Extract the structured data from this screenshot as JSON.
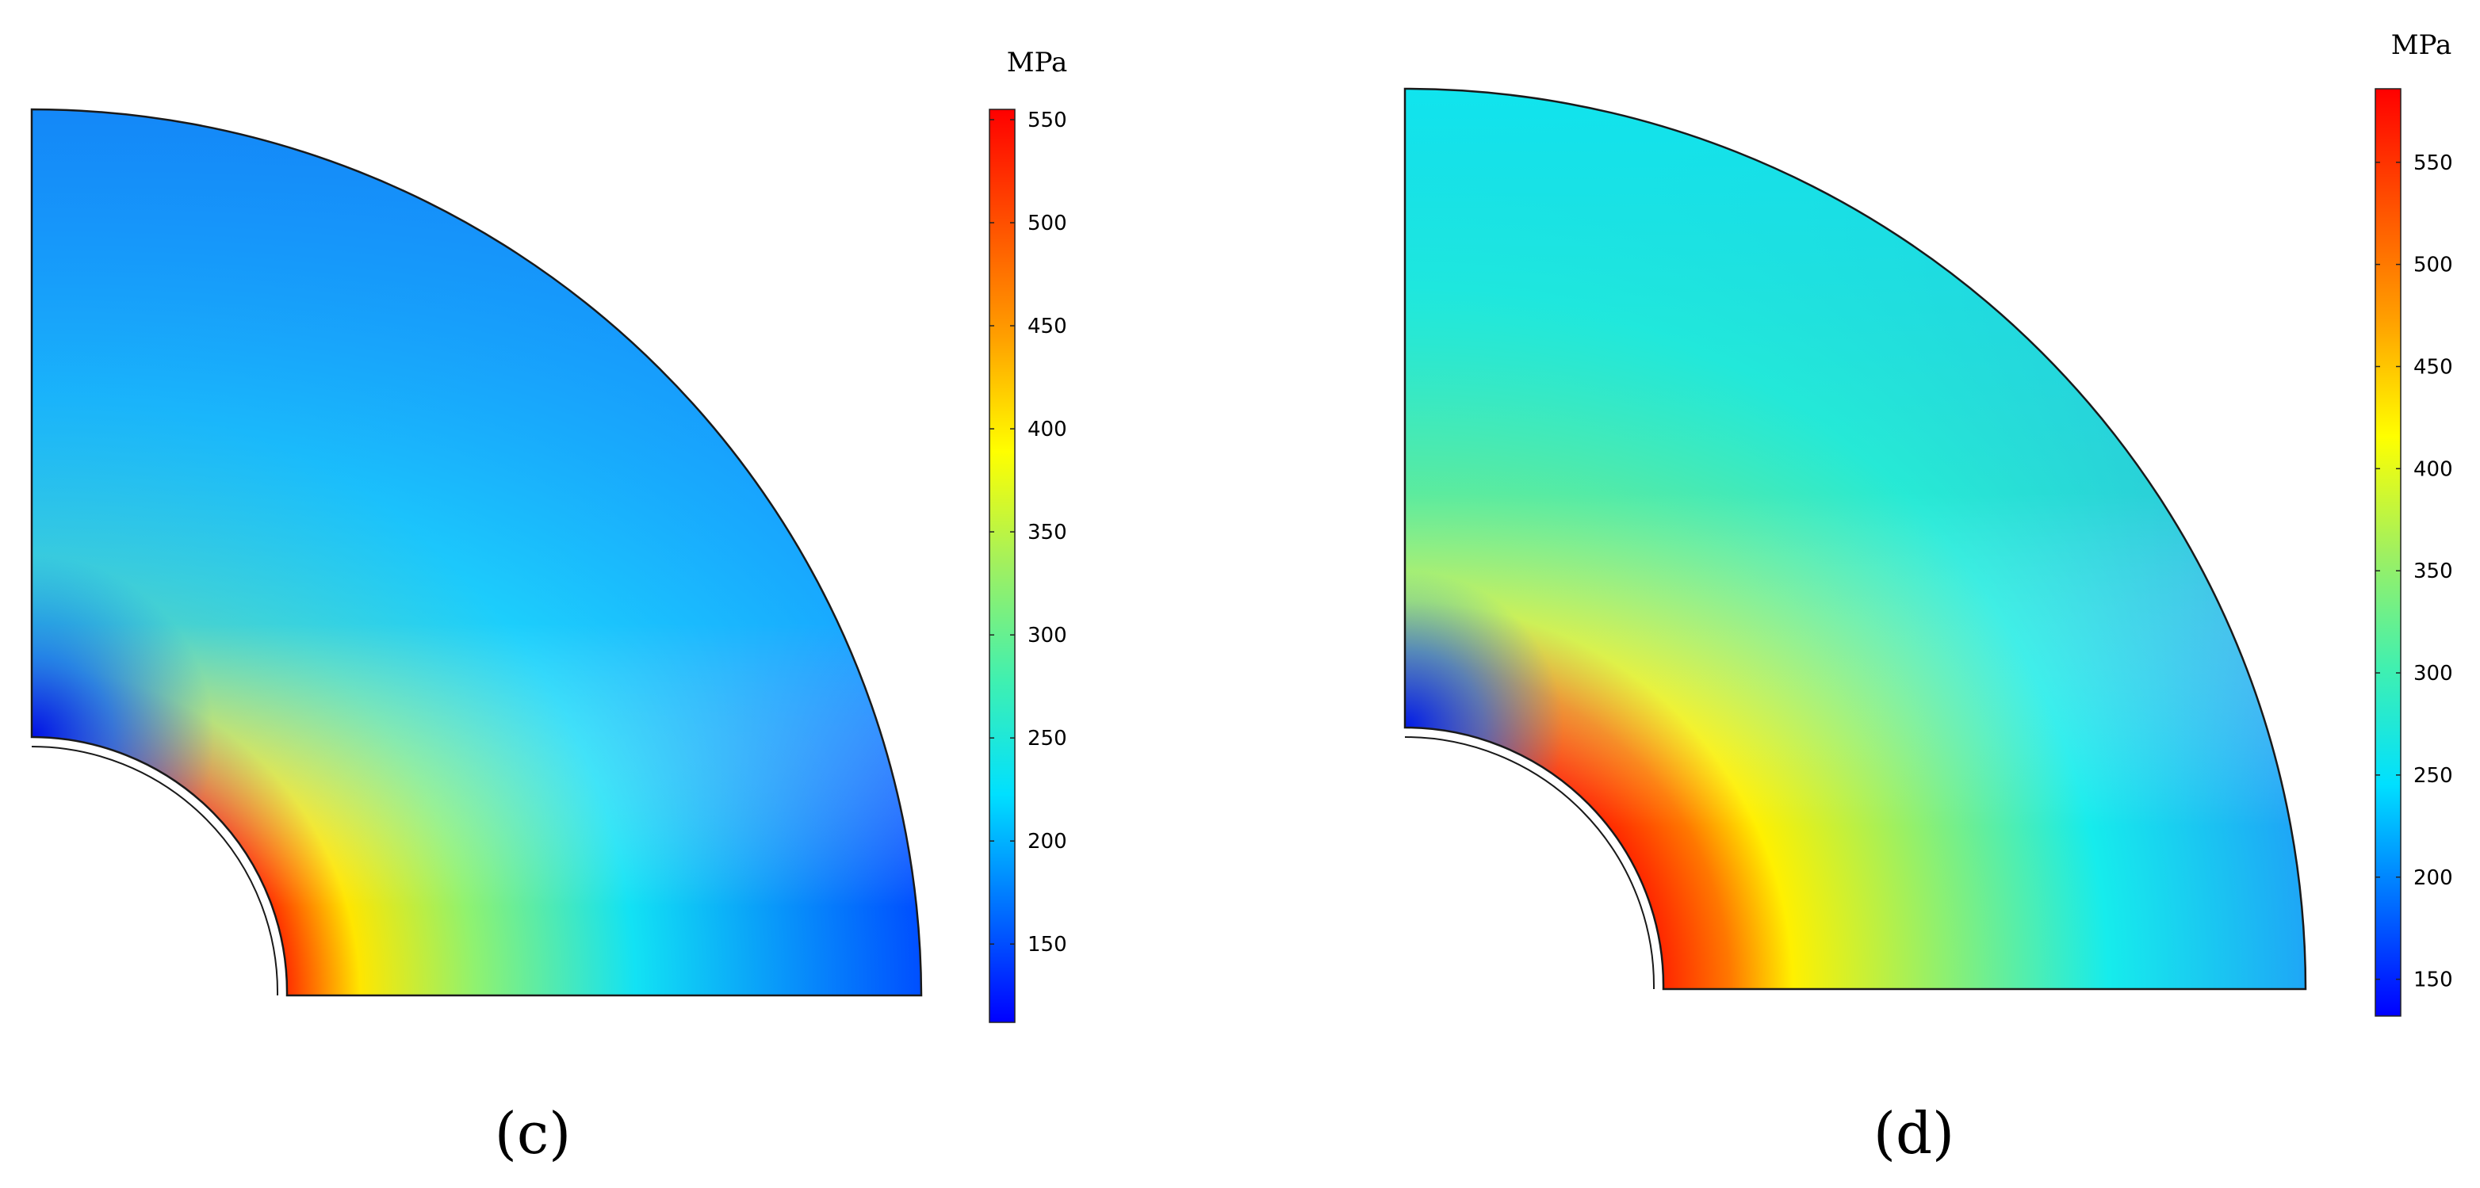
{
  "panels": [
    {
      "id": "c",
      "label": "(c)",
      "colorbar": {
        "unit": "MPa",
        "min": 112,
        "max": 555,
        "ticks": [
          "150",
          "200",
          "250",
          "300",
          "350",
          "400",
          "450",
          "500",
          "550"
        ]
      }
    },
    {
      "id": "d",
      "label": "(d)",
      "colorbar": {
        "unit": "MPa",
        "min": 132,
        "max": 586,
        "ticks": [
          "150",
          "200",
          "250",
          "300",
          "350",
          "400",
          "450",
          "500",
          "550"
        ]
      }
    }
  ],
  "colormap": [
    "#0000ff",
    "#0070ff",
    "#00e0ff",
    "#40f0b0",
    "#a0f060",
    "#ffff00",
    "#ffa000",
    "#ff5000",
    "#ff0000"
  ]
}
